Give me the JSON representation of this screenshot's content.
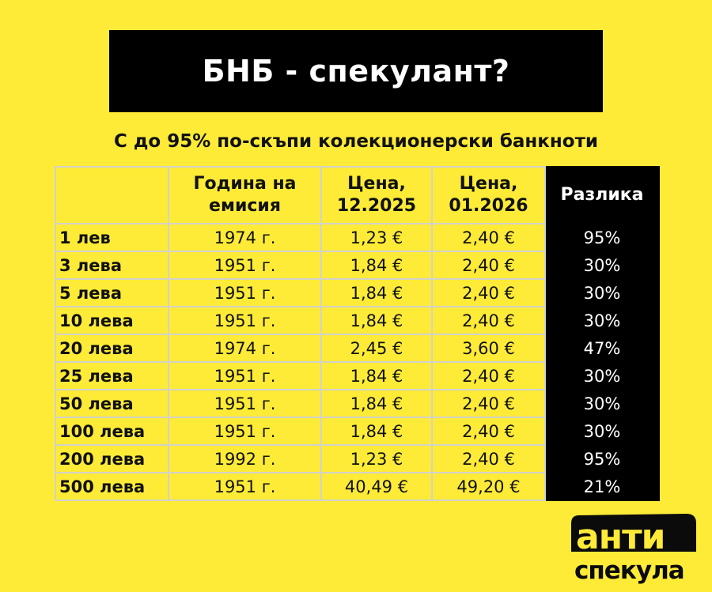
{
  "title": "БНБ - спекулант?",
  "subtitle": "С до 95% по-скъпи колекционерски банкноти",
  "table": {
    "headers": [
      "",
      "Година на емисия",
      "Цена, 12.2025",
      "Цена, 01.2026",
      "Разлика"
    ],
    "rows": [
      [
        "1 лев",
        "1974 г.",
        "1,23 €",
        "2,40 €",
        "95%"
      ],
      [
        "3 лева",
        "1951 г.",
        "1,84 €",
        "2,40 €",
        "30%"
      ],
      [
        "5 лева",
        "1951 г.",
        "1,84 €",
        "2,40 €",
        "30%"
      ],
      [
        "10 лева",
        "1951 г.",
        "1,84 €",
        "2,40 €",
        "30%"
      ],
      [
        "20 лева",
        "1974 г.",
        "2,45 €",
        "3,60 €",
        "47%"
      ],
      [
        "25 лева",
        "1951 г.",
        "1,84 €",
        "2,40 €",
        "30%"
      ],
      [
        "50 лева",
        "1951 г.",
        "1,84 €",
        "2,40 €",
        "30%"
      ],
      [
        "100 лева",
        "1951 г.",
        "1,84 €",
        "2,40 €",
        "30%"
      ],
      [
        "200 лева",
        "1992 г.",
        "1,23 €",
        "2,40 €",
        "95%"
      ],
      [
        "500 лева",
        "1951 г.",
        "40,49 €",
        "49,20 €",
        "21%"
      ]
    ]
  },
  "logo": {
    "line1": "анти",
    "line2": "спекула"
  },
  "colors": {
    "background": "#fdeb37",
    "title_bg": "#000000",
    "diff_bg": "#000000"
  }
}
